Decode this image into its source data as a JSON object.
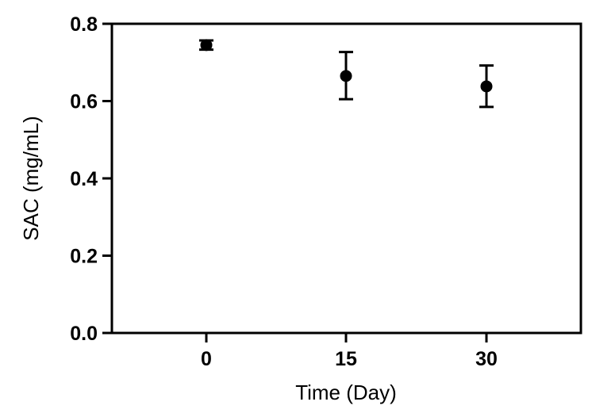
{
  "chart_data": {
    "type": "scatter",
    "title": "",
    "xlabel": "Time (Day)",
    "ylabel": "SAC (mg/mL)",
    "x_categories": [
      "0",
      "15",
      "30"
    ],
    "y_ticks": [
      "0.0",
      "0.2",
      "0.4",
      "0.6",
      "0.8"
    ],
    "ylim": [
      0,
      0.8
    ],
    "grid": false,
    "legend": "none",
    "marker_color": "#000000",
    "series": [
      {
        "points": [
          {
            "x": "0",
            "y": 0.745,
            "err_low": 0.733,
            "err_high": 0.757
          },
          {
            "x": "15",
            "y": 0.665,
            "err_low": 0.605,
            "err_high": 0.727
          },
          {
            "x": "30",
            "y": 0.638,
            "err_low": 0.585,
            "err_high": 0.692
          }
        ]
      }
    ]
  }
}
